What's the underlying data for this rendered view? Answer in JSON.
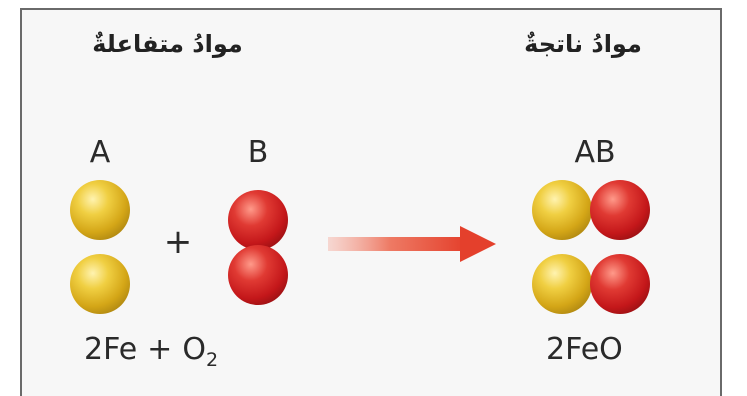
{
  "headings": {
    "reactants": "موادُ متفاعلةٌ",
    "products": "موادُ ناتجةٌ"
  },
  "labels": {
    "a": "A",
    "b": "B",
    "ab": "AB",
    "plus": "+"
  },
  "equation": {
    "reactant_1": "2Fe",
    "operator": "+",
    "reactant_2_symbol": "O",
    "reactant_2_subscript": "2",
    "product": "2FeO"
  },
  "colors": {
    "atom_a": "#d4a617",
    "atom_b": "#c4171a",
    "arrow": "#e63a2c"
  }
}
